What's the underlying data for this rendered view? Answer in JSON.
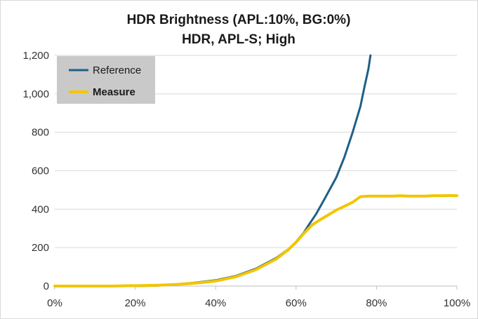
{
  "chart_data": {
    "type": "line",
    "title": [
      "HDR Brightness (APL:10%, BG:0%)",
      "HDR, APL-S; High"
    ],
    "xlabel": "",
    "ylabel": "",
    "xlim": [
      0,
      100
    ],
    "ylim": [
      0,
      1200
    ],
    "x_ticks": [
      0,
      20,
      40,
      60,
      80,
      100
    ],
    "x_tick_labels": [
      "0%",
      "20%",
      "40%",
      "60%",
      "80%",
      "100%"
    ],
    "y_ticks": [
      0,
      200,
      400,
      600,
      800,
      1000,
      1200
    ],
    "y_tick_labels": [
      "0",
      "200",
      "400",
      "600",
      "800",
      "1,000",
      "1,200"
    ],
    "grid": "horizontal",
    "legend_position": "top-left",
    "legend_bold": "Measure",
    "series": [
      {
        "name": "Reference",
        "color": "#1f5f87",
        "points": [
          [
            0,
            0
          ],
          [
            10,
            0
          ],
          [
            20,
            0.5
          ],
          [
            25,
            2
          ],
          [
            30,
            8
          ],
          [
            35,
            18
          ],
          [
            40,
            30
          ],
          [
            45,
            52
          ],
          [
            50,
            90
          ],
          [
            55,
            145
          ],
          [
            58,
            190
          ],
          [
            60,
            230
          ],
          [
            62,
            280
          ],
          [
            63,
            313
          ],
          [
            65,
            375
          ],
          [
            67,
            450
          ],
          [
            70,
            565
          ],
          [
            72,
            670
          ],
          [
            74,
            795
          ],
          [
            76,
            935
          ],
          [
            77,
            1035
          ],
          [
            78,
            1130
          ],
          [
            78.5,
            1200
          ]
        ]
      },
      {
        "name": "Measure",
        "color": "#f2c500",
        "points": [
          [
            0,
            0
          ],
          [
            5,
            0
          ],
          [
            10,
            0
          ],
          [
            15,
            0
          ],
          [
            18,
            2
          ],
          [
            20,
            2
          ],
          [
            25,
            4
          ],
          [
            30,
            8
          ],
          [
            35,
            15
          ],
          [
            40,
            26
          ],
          [
            45,
            48
          ],
          [
            50,
            85
          ],
          [
            55,
            140
          ],
          [
            58,
            188
          ],
          [
            60,
            228
          ],
          [
            62,
            275
          ],
          [
            64,
            318
          ],
          [
            66,
            345
          ],
          [
            68,
            370
          ],
          [
            70,
            395
          ],
          [
            72,
            415
          ],
          [
            74,
            435
          ],
          [
            76,
            465
          ],
          [
            78,
            468
          ],
          [
            80,
            468
          ],
          [
            82,
            468
          ],
          [
            84,
            468
          ],
          [
            86,
            470
          ],
          [
            88,
            468
          ],
          [
            90,
            468
          ],
          [
            92,
            468
          ],
          [
            94,
            470
          ],
          [
            96,
            470
          ],
          [
            98,
            471
          ],
          [
            100,
            470
          ]
        ]
      }
    ]
  }
}
